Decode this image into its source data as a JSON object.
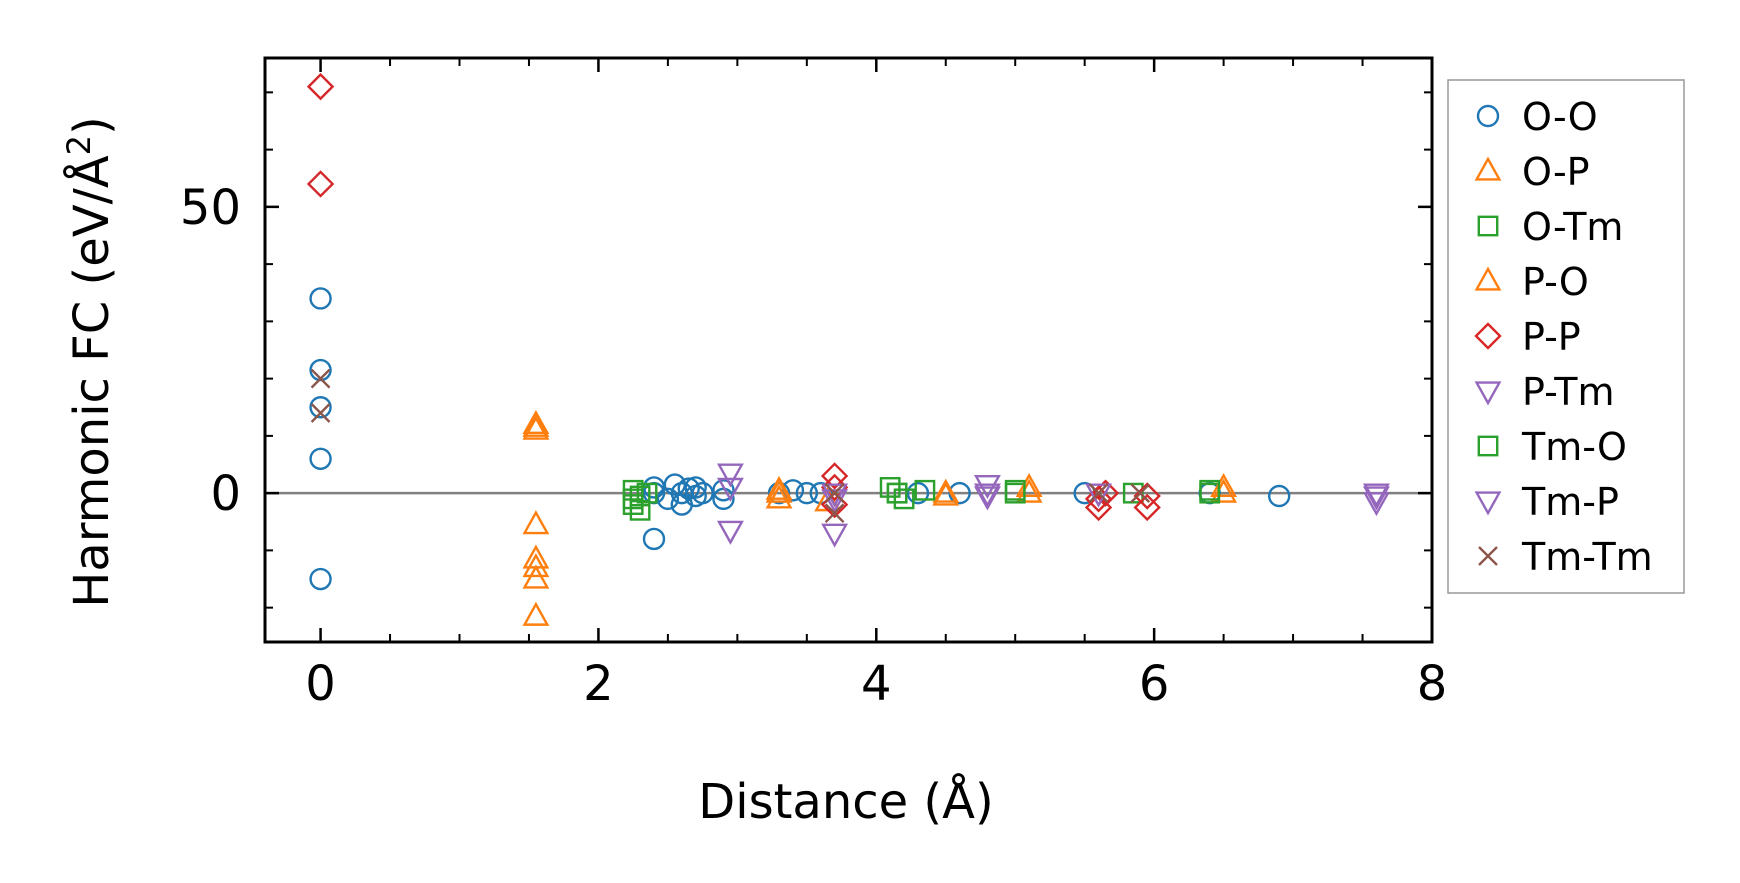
{
  "chart_data": {
    "type": "scatter",
    "xlabel": "Distance (Å)",
    "ylabel_main": "Harmonic FC (eV/Å",
    "ylabel_sup": "2",
    "ylabel_close": ")",
    "xlim": [
      -0.4,
      8.0
    ],
    "ylim": [
      -26,
      76
    ],
    "xticks_major": [
      0,
      2,
      4,
      6,
      8
    ],
    "xtick_labels": [
      "0",
      "2",
      "4",
      "6",
      "8"
    ],
    "xticks_minor": [
      -0.5,
      0.5,
      1.0,
      1.5,
      2.5,
      3.0,
      3.5,
      4.5,
      5.0,
      5.5,
      6.5,
      7.0,
      7.5
    ],
    "yticks_major": [
      0,
      50
    ],
    "ytick_labels": [
      "0",
      "50"
    ],
    "yticks_minor": [
      -20,
      -10,
      10,
      20,
      30,
      40,
      60,
      70
    ],
    "zero_line": 0,
    "grid": false,
    "legend_position": "outside-right",
    "series": [
      {
        "name": "O-O",
        "marker": "circle",
        "color": "#1f77b4",
        "points": [
          [
            0,
            34
          ],
          [
            0,
            21.5
          ],
          [
            0,
            15
          ],
          [
            0,
            6
          ],
          [
            0,
            -15
          ],
          [
            2.4,
            -8
          ],
          [
            2.4,
            1
          ],
          [
            2.4,
            0
          ],
          [
            2.5,
            -1
          ],
          [
            2.55,
            1.5
          ],
          [
            2.6,
            0
          ],
          [
            2.6,
            -2
          ],
          [
            2.65,
            0.8
          ],
          [
            2.7,
            -0.5
          ],
          [
            2.7,
            1
          ],
          [
            2.75,
            0
          ],
          [
            2.9,
            0.5
          ],
          [
            2.9,
            -1
          ],
          [
            3.3,
            0
          ],
          [
            3.4,
            0.5
          ],
          [
            3.5,
            0
          ],
          [
            3.6,
            0
          ],
          [
            4.3,
            0
          ],
          [
            4.6,
            0
          ],
          [
            5.5,
            0
          ],
          [
            6.4,
            0
          ],
          [
            6.9,
            -0.5
          ]
        ]
      },
      {
        "name": "O-P",
        "marker": "triangle-up",
        "color": "#ff7f0e",
        "points": [
          [
            1.55,
            12
          ],
          [
            1.55,
            11
          ],
          [
            1.55,
            -5.5
          ],
          [
            1.55,
            -11.5
          ],
          [
            1.55,
            -13
          ],
          [
            1.55,
            -15
          ],
          [
            1.55,
            -21.5
          ],
          [
            3.3,
            0
          ],
          [
            3.3,
            -1
          ],
          [
            3.65,
            -1.5
          ],
          [
            4.5,
            0
          ],
          [
            5.1,
            0
          ],
          [
            6.5,
            0
          ]
        ]
      },
      {
        "name": "O-Tm",
        "marker": "square",
        "color": "#2ca02c",
        "points": [
          [
            2.25,
            0.5
          ],
          [
            2.25,
            -1
          ],
          [
            2.25,
            -2
          ],
          [
            2.3,
            -3
          ],
          [
            2.35,
            0
          ],
          [
            4.1,
            1
          ],
          [
            4.15,
            0
          ],
          [
            4.2,
            -1
          ],
          [
            4.35,
            0.5
          ],
          [
            5.0,
            0
          ],
          [
            5.85,
            0
          ],
          [
            6.4,
            0
          ]
        ]
      },
      {
        "name": "P-O",
        "marker": "triangle-up",
        "color": "#ff7f0e",
        "points": [
          [
            1.55,
            11.5
          ],
          [
            3.3,
            0.5
          ],
          [
            4.5,
            -0.5
          ],
          [
            5.1,
            1
          ],
          [
            6.5,
            1
          ]
        ]
      },
      {
        "name": "P-P",
        "marker": "diamond",
        "color": "#d62728",
        "points": [
          [
            0,
            71
          ],
          [
            0,
            54
          ],
          [
            3.7,
            3
          ],
          [
            3.7,
            1
          ],
          [
            3.7,
            -2
          ],
          [
            5.6,
            -1
          ],
          [
            5.6,
            -2.5
          ],
          [
            5.65,
            0
          ],
          [
            5.95,
            -0.5
          ],
          [
            5.95,
            -2.5
          ]
        ]
      },
      {
        "name": "P-Tm",
        "marker": "triangle-down",
        "color": "#9467bd",
        "points": [
          [
            2.95,
            3.5
          ],
          [
            2.95,
            1
          ],
          [
            2.95,
            -6.5
          ],
          [
            3.7,
            -7
          ],
          [
            3.7,
            0
          ],
          [
            4.8,
            1.5
          ],
          [
            4.8,
            0
          ],
          [
            7.6,
            -0.5
          ],
          [
            7.6,
            -1.5
          ]
        ]
      },
      {
        "name": "Tm-O",
        "marker": "square",
        "color": "#2ca02c",
        "points": [
          [
            2.3,
            -0.5
          ],
          [
            4.15,
            0
          ],
          [
            5.0,
            0.5
          ],
          [
            6.4,
            0.5
          ]
        ]
      },
      {
        "name": "Tm-P",
        "marker": "triangle-down",
        "color": "#9467bd",
        "points": [
          [
            3.7,
            -1
          ],
          [
            4.8,
            -0.5
          ],
          [
            5.6,
            0
          ],
          [
            7.6,
            0
          ]
        ]
      },
      {
        "name": "Tm-Tm",
        "marker": "x",
        "color": "#8c564b",
        "points": [
          [
            0,
            20
          ],
          [
            0,
            14
          ],
          [
            3.7,
            0
          ],
          [
            3.7,
            -3.5
          ],
          [
            5.6,
            0
          ],
          [
            5.9,
            0
          ]
        ]
      }
    ]
  }
}
